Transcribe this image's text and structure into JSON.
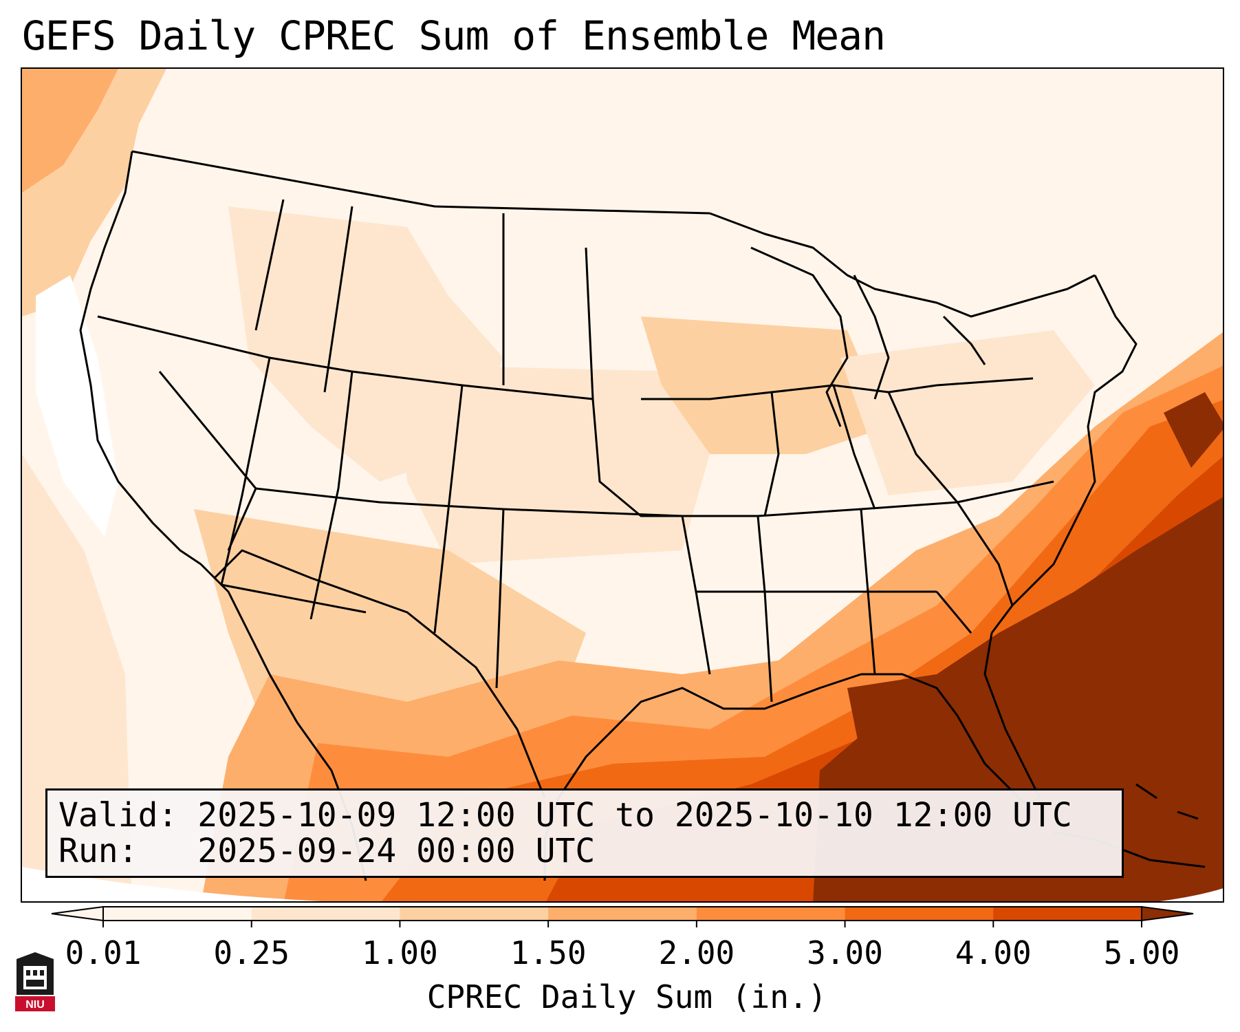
{
  "title": "GEFS Daily CPREC Sum of Ensemble Mean",
  "info_box": {
    "valid_label": "Valid:",
    "valid_value": "2025-10-09 12:00 UTC to 2025-10-10 12:00 UTC",
    "run_label": "Run:",
    "run_value": "2025-09-24 00:00 UTC"
  },
  "colorbar": {
    "label": "CPREC Daily Sum (in.)",
    "ticks": [
      "0.01",
      "0.25",
      "1.00",
      "1.50",
      "2.00",
      "3.00",
      "4.00",
      "5.00"
    ],
    "colors": [
      "#fff5eb",
      "#fee6ce",
      "#fdd0a2",
      "#fdae6b",
      "#fd8d3c",
      "#f16913",
      "#d94801",
      "#8c2d04"
    ],
    "extend": "both"
  },
  "logo": {
    "text": "NIU",
    "color": "#c8102e"
  },
  "map": {
    "region": "Contiguous United States",
    "field": "CPREC daily sum",
    "max_region": "Florida / Gulf of Mexico / western Atlantic"
  }
}
